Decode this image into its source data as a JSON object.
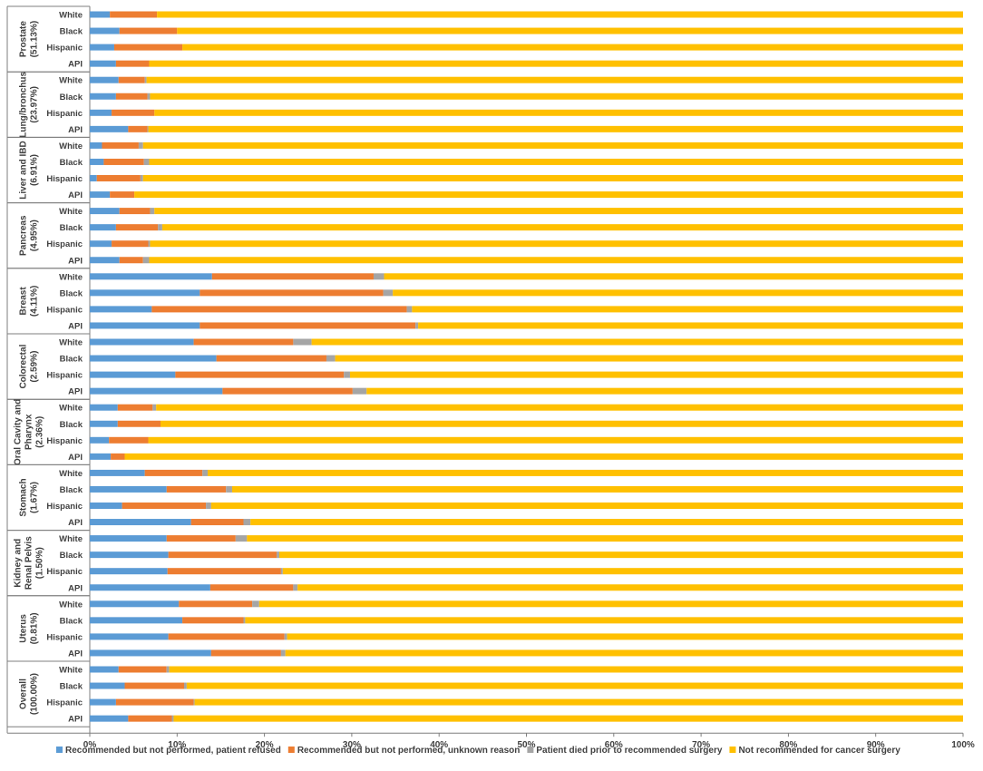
{
  "chart_data": {
    "type": "bar",
    "orientation": "horizontal",
    "stacked": "percent",
    "title": "",
    "xlabel": "",
    "ylabel": "",
    "xlim": [
      0,
      100
    ],
    "x_ticks": [
      "0%",
      "10%",
      "20%",
      "30%",
      "40%",
      "50%",
      "60%",
      "70%",
      "80%",
      "90%",
      "100%"
    ],
    "grid": false,
    "legend_position": "bottom",
    "colors": [
      "#5b9bd5",
      "#ed7d31",
      "#a5a5a5",
      "#ffc000"
    ],
    "series_names": [
      "Recommended but not performed, patient refused",
      "Recommended but not performed, unknown reason",
      "Patient died prior to recommended surgery",
      "Not recommended for cancer surgery"
    ],
    "groups": [
      {
        "name": "Prostate",
        "pct": "(51.13%)",
        "rows": [
          {
            "label": "White",
            "values": [
              2.3,
              5.4,
              0.0,
              92.3
            ]
          },
          {
            "label": "Black",
            "values": [
              3.4,
              6.6,
              0.0,
              90.0
            ]
          },
          {
            "label": "Hispanic",
            "values": [
              2.8,
              7.8,
              0.0,
              89.4
            ]
          },
          {
            "label": "API",
            "values": [
              3.0,
              3.8,
              0.0,
              93.2
            ]
          }
        ]
      },
      {
        "name": "Lung/bronchus",
        "pct": "(23.97%)",
        "rows": [
          {
            "label": "White",
            "values": [
              3.3,
              3.0,
              0.2,
              93.5
            ]
          },
          {
            "label": "Black",
            "values": [
              3.0,
              3.6,
              0.3,
              93.1
            ]
          },
          {
            "label": "Hispanic",
            "values": [
              2.5,
              4.9,
              0.0,
              92.6
            ]
          },
          {
            "label": "API",
            "values": [
              4.4,
              2.2,
              0.1,
              93.3
            ]
          }
        ]
      },
      {
        "name": "Liver and IBD",
        "pct": "(6.91%)",
        "rows": [
          {
            "label": "White",
            "values": [
              1.4,
              4.2,
              0.5,
              93.9
            ]
          },
          {
            "label": "Black",
            "values": [
              1.6,
              4.6,
              0.6,
              93.2
            ]
          },
          {
            "label": "Hispanic",
            "values": [
              0.8,
              5.0,
              0.3,
              93.9
            ]
          },
          {
            "label": "API",
            "values": [
              2.3,
              2.8,
              0.0,
              94.9
            ]
          }
        ]
      },
      {
        "name": "Pancreas",
        "pct": "(4.95%)",
        "rows": [
          {
            "label": "White",
            "values": [
              3.4,
              3.5,
              0.5,
              92.6
            ]
          },
          {
            "label": "Black",
            "values": [
              3.0,
              4.8,
              0.5,
              91.7
            ]
          },
          {
            "label": "Hispanic",
            "values": [
              2.5,
              4.2,
              0.2,
              93.1
            ]
          },
          {
            "label": "API",
            "values": [
              3.4,
              2.7,
              0.7,
              93.2
            ]
          }
        ]
      },
      {
        "name": "Breast",
        "pct": "(4.11%)",
        "rows": [
          {
            "label": "White",
            "values": [
              14.0,
              18.5,
              1.2,
              66.3
            ]
          },
          {
            "label": "Black",
            "values": [
              12.6,
              21.0,
              1.1,
              65.3
            ]
          },
          {
            "label": "Hispanic",
            "values": [
              7.1,
              29.2,
              0.6,
              63.1
            ]
          },
          {
            "label": "API",
            "values": [
              12.6,
              24.7,
              0.3,
              62.4
            ]
          }
        ]
      },
      {
        "name": "Colorectal",
        "pct": "(2.59%)",
        "rows": [
          {
            "label": "White",
            "values": [
              11.9,
              11.4,
              2.1,
              74.6
            ]
          },
          {
            "label": "Black",
            "values": [
              14.5,
              12.6,
              1.0,
              71.9
            ]
          },
          {
            "label": "Hispanic",
            "values": [
              9.8,
              19.3,
              0.7,
              70.2
            ]
          },
          {
            "label": "API",
            "values": [
              15.2,
              14.9,
              1.6,
              68.3
            ]
          }
        ]
      },
      {
        "name": "Oral Cavity and",
        "name2": "Pharynx",
        "pct": "(2.36%)",
        "rows": [
          {
            "label": "White",
            "values": [
              3.2,
              4.0,
              0.4,
              92.4
            ]
          },
          {
            "label": "Black",
            "values": [
              3.2,
              4.9,
              0.0,
              91.9
            ]
          },
          {
            "label": "Hispanic",
            "values": [
              2.2,
              4.5,
              0.0,
              93.3
            ]
          },
          {
            "label": "API",
            "values": [
              2.4,
              1.6,
              0.0,
              96.0
            ]
          }
        ]
      },
      {
        "name": "Stomach",
        "pct": "(1.67%)",
        "rows": [
          {
            "label": "White",
            "values": [
              6.3,
              6.6,
              0.6,
              86.5
            ]
          },
          {
            "label": "Black",
            "values": [
              8.8,
              6.8,
              0.7,
              83.7
            ]
          },
          {
            "label": "Hispanic",
            "values": [
              3.7,
              9.6,
              0.6,
              86.1
            ]
          },
          {
            "label": "API",
            "values": [
              11.6,
              6.0,
              0.8,
              81.6
            ]
          }
        ]
      },
      {
        "name": "Kidney and",
        "name2": "Renal Pelvis",
        "pct": "(1.50%)",
        "rows": [
          {
            "label": "White",
            "values": [
              8.8,
              7.9,
              1.3,
              82.0
            ]
          },
          {
            "label": "Black",
            "values": [
              9.0,
              12.4,
              0.3,
              78.3
            ]
          },
          {
            "label": "Hispanic",
            "values": [
              8.9,
              13.0,
              0.2,
              77.9
            ]
          },
          {
            "label": "API",
            "values": [
              13.8,
              9.5,
              0.5,
              76.2
            ]
          }
        ]
      },
      {
        "name": "Uterus",
        "pct": "(0.81%)",
        "rows": [
          {
            "label": "White",
            "values": [
              10.2,
              8.4,
              0.8,
              80.6
            ]
          },
          {
            "label": "Black",
            "values": [
              10.6,
              7.0,
              0.2,
              82.2
            ]
          },
          {
            "label": "Hispanic",
            "values": [
              9.0,
              13.3,
              0.3,
              77.4
            ]
          },
          {
            "label": "API",
            "values": [
              13.9,
              8.0,
              0.5,
              77.6
            ]
          }
        ]
      },
      {
        "name": "Overall",
        "pct": "(100.00%)",
        "rows": [
          {
            "label": "White",
            "values": [
              3.3,
              5.5,
              0.3,
              90.9
            ]
          },
          {
            "label": "Black",
            "values": [
              4.0,
              6.8,
              0.3,
              88.9
            ]
          },
          {
            "label": "Hispanic",
            "values": [
              3.0,
              8.9,
              0.1,
              88.0
            ]
          },
          {
            "label": "API",
            "values": [
              4.4,
              5.0,
              0.2,
              90.4
            ]
          }
        ]
      }
    ]
  }
}
